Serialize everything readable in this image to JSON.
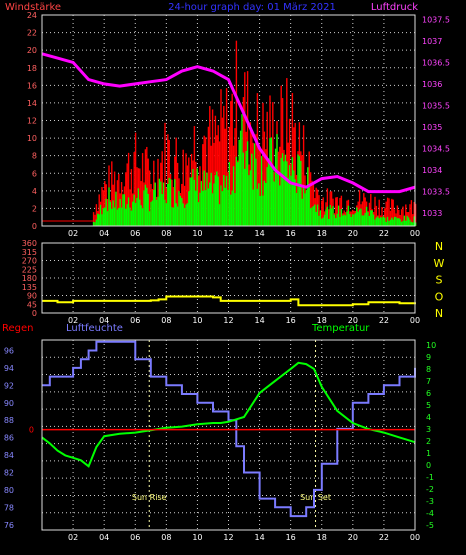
{
  "header": {
    "left_label": "Windstärke",
    "center_label": "24-hour graph day: 01 März 2021",
    "right_label": "Luftdruck"
  },
  "colors": {
    "background": "#000000",
    "grid": "#cfcfcf",
    "axis_frame": "#dddddd",
    "wind_gust": "#ff0000",
    "wind_avg": "#00ff00",
    "pressure": "#ff00ff",
    "direction": "#ffff00",
    "humidity": "#7b7bff",
    "temperature": "#00ff00",
    "rain": "#ff0000",
    "left_axis_labels": "#ff6060",
    "right_axis_labels_top": "#ff44ff",
    "right_axis_labels_bottom": "#22ff22",
    "hum_axis_labels": "#8888ff",
    "dir_labels": "#ffff00",
    "marker_text": "#ffff80",
    "title_blue": "#3333ff"
  },
  "x_axis": {
    "tick_labels": [
      "02",
      "04",
      "06",
      "08",
      "10",
      "12",
      "14",
      "16",
      "18",
      "20",
      "22",
      "00"
    ]
  },
  "chart_data": [
    {
      "type": "bar",
      "name": "wind",
      "left_axis": {
        "label": "Windstärke",
        "tick_labels": [
          "0",
          "2",
          "4",
          "6",
          "8",
          "10",
          "12",
          "14",
          "16",
          "18",
          "20",
          "22",
          "24"
        ],
        "ylim": [
          0,
          24
        ]
      },
      "right_axis": {
        "label": "Luftdruck",
        "tick_labels": [
          "1033",
          "1033.5",
          "1034",
          "1034.5",
          "1035",
          "1035.5",
          "1036",
          "1036.5",
          "1037",
          "1037.5"
        ],
        "ylim": [
          1032.7,
          1037.6
        ]
      },
      "x_hours": [
        0,
        1,
        2,
        3,
        3.5,
        4,
        5,
        6,
        7,
        8,
        9,
        10,
        11,
        12,
        12.5,
        13,
        14,
        15,
        16,
        17,
        17.5,
        18,
        19,
        20,
        21,
        22,
        23,
        24
      ],
      "gust": [
        0,
        0,
        0,
        0,
        4,
        6,
        8,
        10,
        8,
        12,
        9,
        14,
        13,
        16,
        20,
        18,
        14,
        15,
        16,
        10,
        6,
        4,
        4,
        4,
        4,
        3,
        3,
        3
      ],
      "avg": [
        0,
        0,
        0,
        0,
        1,
        4,
        3,
        4,
        4,
        5,
        5,
        6,
        5,
        6,
        10,
        12,
        8,
        9,
        8,
        6,
        3,
        2,
        2,
        2,
        2,
        1,
        1,
        1
      ],
      "pressure_x": [
        0,
        1,
        2,
        3,
        4,
        5,
        6,
        7,
        8,
        9,
        10,
        11,
        11.5,
        12,
        13,
        14,
        15,
        16,
        17,
        18,
        19,
        20,
        21,
        22,
        23,
        24
      ],
      "pressure": [
        1036.7,
        1036.6,
        1036.5,
        1036.1,
        1036.0,
        1035.95,
        1036.0,
        1036.05,
        1036.1,
        1036.3,
        1036.4,
        1036.3,
        1036.2,
        1036.1,
        1035.3,
        1034.5,
        1034.0,
        1033.7,
        1033.6,
        1033.8,
        1033.85,
        1033.7,
        1033.5,
        1033.5,
        1033.5,
        1033.6
      ],
      "x_tick_labels": [
        "02",
        "04",
        "06",
        "08",
        "10",
        "12",
        "14",
        "16",
        "18",
        "20",
        "22",
        "00"
      ]
    },
    {
      "type": "line",
      "name": "direction",
      "left_axis": {
        "tick_labels": [
          "0",
          "45",
          "90",
          "135",
          "180",
          "225",
          "270",
          "315",
          "360"
        ],
        "ylim": [
          0,
          360
        ]
      },
      "right_axis": {
        "tick_labels": [
          "N",
          "W",
          "S",
          "O",
          "N"
        ]
      },
      "x_hours": [
        0,
        1,
        2,
        3,
        4,
        5,
        6,
        7,
        7.5,
        8,
        9,
        10,
        11,
        11.5,
        12,
        13,
        14,
        15,
        16,
        16.5,
        17,
        18,
        19,
        20,
        21,
        22,
        23,
        24
      ],
      "values": [
        62,
        55,
        62,
        62,
        62,
        62,
        62,
        65,
        70,
        85,
        85,
        85,
        80,
        62,
        62,
        62,
        62,
        62,
        70,
        40,
        40,
        40,
        40,
        45,
        55,
        55,
        50,
        55
      ],
      "x_tick_labels": [
        "02",
        "04",
        "06",
        "08",
        "10",
        "12",
        "14",
        "16",
        "18",
        "20",
        "22",
        "00"
      ]
    },
    {
      "type": "line",
      "name": "humidity_temperature",
      "labels": {
        "rain": "Regen",
        "humidity": "Luftfeuchte",
        "temperature": "Temperatur"
      },
      "left_axis": {
        "tick_labels": [
          "76",
          "78",
          "80",
          "82",
          "84",
          "86",
          "88",
          "90",
          "92",
          "94",
          "96"
        ],
        "ylim": [
          75.4,
          97.2
        ]
      },
      "right_axis": {
        "tick_labels": [
          "-5",
          "-4",
          "-3",
          "-2",
          "-1",
          "0",
          "1",
          "2",
          "3",
          "4",
          "5",
          "6",
          "7",
          "8",
          "9",
          "10"
        ],
        "ylim": [
          -5.4,
          10.4
        ]
      },
      "rain_axis": {
        "tick_labels": [
          "0"
        ]
      },
      "rain_level": 0,
      "humidity_x": [
        0,
        0.5,
        1,
        2,
        2.5,
        3,
        3.5,
        4,
        5,
        6,
        7,
        8,
        9,
        10,
        11,
        12,
        12.5,
        13,
        14,
        15,
        16,
        17,
        17.5,
        18,
        19,
        20,
        21,
        22,
        23,
        24
      ],
      "humidity": [
        92,
        93,
        93,
        94,
        95,
        96,
        97,
        97,
        97,
        95,
        93,
        92,
        91,
        90,
        89,
        88,
        85,
        82,
        79,
        78,
        77,
        78,
        80,
        83,
        87,
        90,
        91,
        92,
        93,
        94
      ],
      "temperature_x": [
        0,
        0.5,
        1,
        1.5,
        2,
        2.5,
        3,
        3.5,
        4,
        5,
        6,
        7,
        8,
        9,
        10,
        11,
        11.5,
        12,
        13,
        14,
        15,
        16,
        16.5,
        17,
        17.5,
        18,
        19,
        20,
        21,
        22,
        23,
        24
      ],
      "temperature": [
        2.3,
        1.8,
        1.2,
        0.8,
        0.6,
        0.4,
        -0.1,
        1.5,
        2.4,
        2.6,
        2.7,
        2.9,
        3.1,
        3.2,
        3.4,
        3.5,
        3.5,
        3.6,
        4.0,
        6.0,
        7.0,
        8.0,
        8.5,
        8.4,
        8.0,
        6.5,
        4.5,
        3.5,
        3.0,
        2.7,
        2.3,
        1.9
      ],
      "markers": [
        {
          "label": "Sun Rise",
          "hour": 6.9
        },
        {
          "label": "Sun Set",
          "hour": 17.6
        }
      ],
      "x_tick_labels": [
        "02",
        "04",
        "06",
        "08",
        "10",
        "12",
        "14",
        "16",
        "18",
        "20",
        "22",
        "00"
      ]
    }
  ]
}
